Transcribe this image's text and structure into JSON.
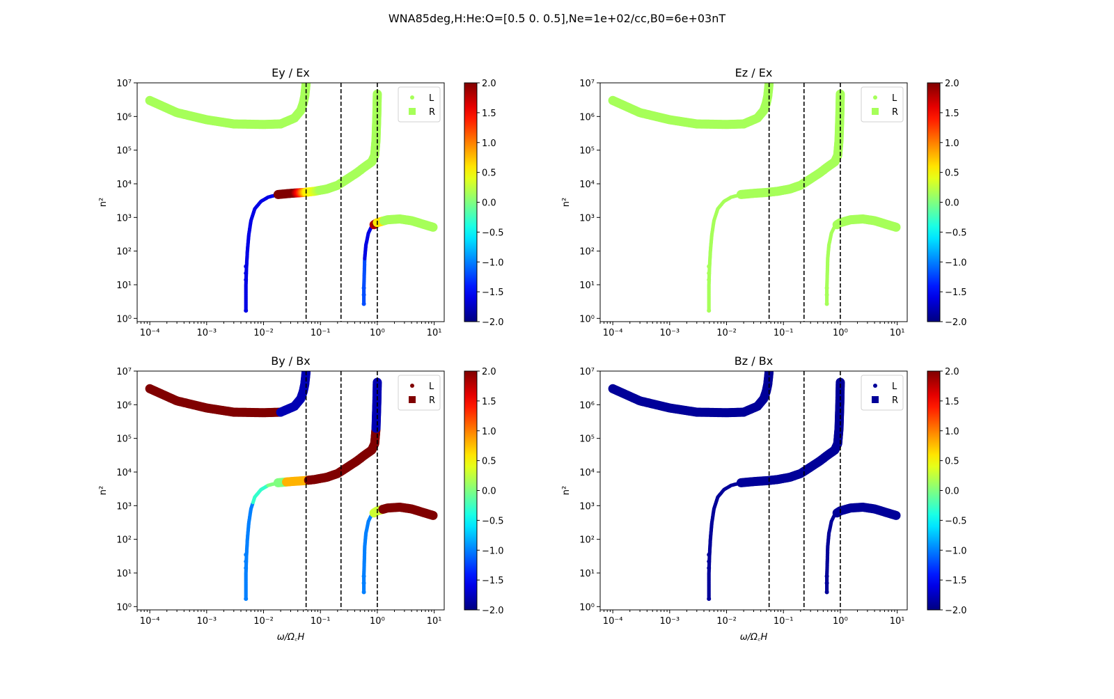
{
  "figure": {
    "suptitle": "WNA85deg,H:He:O=[0.5 0.  0.5],Ne=1e+02/cc,B0=6e+03nT"
  },
  "chart_data": [
    {
      "type": "scatter",
      "title": "Ey / Ex",
      "xlabel": "",
      "ylabel": "n²",
      "xscale": "log",
      "yscale": "log",
      "xlim": [
        6e-05,
        15
      ],
      "ylim": [
        0.8,
        10000000
      ],
      "xticks": [
        "10⁻⁴",
        "10⁻³",
        "10⁻²",
        "10⁻¹",
        "10⁰",
        "10¹"
      ],
      "yticks": [
        "10⁰",
        "10¹",
        "10²",
        "10³",
        "10⁴",
        "10⁵",
        "10⁶",
        "10⁷"
      ],
      "vlines": [
        0.056,
        0.23,
        1.0
      ],
      "legend": {
        "position": "top-right",
        "entries": [
          "L",
          "R"
        ]
      },
      "colorbar": {
        "min": -2.0,
        "max": 2.0,
        "ticks": [
          "2.0",
          "1.5",
          "1.0",
          "0.5",
          "0.0",
          "−0.5",
          "−1.0",
          "−1.5",
          "−2.0"
        ],
        "colormap": "jet"
      },
      "color_profile": "ey"
    },
    {
      "type": "scatter",
      "title": "Ez / Ex",
      "xlabel": "",
      "ylabel": "n²",
      "xscale": "log",
      "yscale": "log",
      "xlim": [
        6e-05,
        15
      ],
      "ylim": [
        0.8,
        10000000
      ],
      "xticks": [
        "10⁻⁴",
        "10⁻³",
        "10⁻²",
        "10⁻¹",
        "10⁰",
        "10¹"
      ],
      "yticks": [
        "10⁰",
        "10¹",
        "10²",
        "10³",
        "10⁴",
        "10⁵",
        "10⁶",
        "10⁷"
      ],
      "vlines": [
        0.056,
        0.23,
        1.0
      ],
      "legend": {
        "position": "top-right",
        "entries": [
          "L",
          "R"
        ]
      },
      "colorbar": {
        "min": -2.0,
        "max": 2.0,
        "ticks": [
          "2.0",
          "1.5",
          "1.0",
          "0.5",
          "0.0",
          "−0.5",
          "−1.0",
          "−1.5",
          "−2.0"
        ],
        "colormap": "jet"
      },
      "color_profile": "ez"
    },
    {
      "type": "scatter",
      "title": "By / Bx",
      "xlabel": "ω/Ω꜀H",
      "ylabel": "n²",
      "xscale": "log",
      "yscale": "log",
      "xlim": [
        6e-05,
        15
      ],
      "ylim": [
        0.8,
        10000000
      ],
      "xticks": [
        "10⁻⁴",
        "10⁻³",
        "10⁻²",
        "10⁻¹",
        "10⁰",
        "10¹"
      ],
      "yticks": [
        "10⁰",
        "10¹",
        "10²",
        "10³",
        "10⁴",
        "10⁵",
        "10⁶",
        "10⁷"
      ],
      "vlines": [
        0.056,
        0.23,
        1.0
      ],
      "legend": {
        "position": "top-right",
        "entries": [
          "L",
          "R"
        ]
      },
      "colorbar": {
        "min": -2.0,
        "max": 2.0,
        "ticks": [
          "2.0",
          "1.5",
          "1.0",
          "0.5",
          "0.0",
          "−0.5",
          "−1.0",
          "−1.5",
          "−2.0"
        ],
        "colormap": "jet"
      },
      "color_profile": "by"
    },
    {
      "type": "scatter",
      "title": "Bz / Bx",
      "xlabel": "ω/Ω꜀H",
      "ylabel": "n²",
      "xscale": "log",
      "yscale": "log",
      "xlim": [
        6e-05,
        15
      ],
      "ylim": [
        0.8,
        10000000
      ],
      "xticks": [
        "10⁻⁴",
        "10⁻³",
        "10⁻²",
        "10⁻¹",
        "10⁰",
        "10¹"
      ],
      "yticks": [
        "10⁰",
        "10¹",
        "10²",
        "10³",
        "10⁴",
        "10⁵",
        "10⁶",
        "10⁷"
      ],
      "vlines": [
        0.056,
        0.23,
        1.0
      ],
      "legend": {
        "position": "top-right",
        "entries": [
          "L",
          "R"
        ]
      },
      "colorbar": {
        "min": -2.0,
        "max": 2.0,
        "ticks": [
          "2.0",
          "1.5",
          "1.0",
          "0.5",
          "0.0",
          "−0.5",
          "−1.0",
          "−1.5",
          "−2.0"
        ],
        "colormap": "jet"
      },
      "color_profile": "bz"
    }
  ],
  "branches": [
    {
      "name": "upper-branch",
      "points": [
        [
          0.0001,
          3000000
        ],
        [
          0.0003,
          1300000
        ],
        [
          0.001,
          800000
        ],
        [
          0.003,
          600000
        ],
        [
          0.01,
          580000
        ],
        [
          0.02,
          600000
        ],
        [
          0.035,
          900000
        ],
        [
          0.045,
          1500000
        ],
        [
          0.05,
          2500000
        ],
        [
          0.053,
          4000000
        ],
        [
          0.055,
          7000000
        ],
        [
          0.056,
          10000000
        ]
      ]
    },
    {
      "name": "middle-branch",
      "points": [
        [
          0.0049,
          1.7
        ],
        [
          0.0049,
          4
        ],
        [
          0.0049,
          10
        ],
        [
          0.005,
          30
        ],
        [
          0.0052,
          100
        ],
        [
          0.0055,
          300
        ],
        [
          0.006,
          800
        ],
        [
          0.007,
          1800
        ],
        [
          0.009,
          3000
        ],
        [
          0.012,
          4000
        ],
        [
          0.018,
          4800
        ],
        [
          0.03,
          5200
        ],
        [
          0.05,
          5500
        ],
        [
          0.08,
          6000
        ],
        [
          0.13,
          7000
        ],
        [
          0.2,
          9000
        ],
        [
          0.3,
          14000
        ],
        [
          0.45,
          22000
        ],
        [
          0.6,
          32000
        ],
        [
          0.8,
          45000
        ],
        [
          0.9,
          70000
        ],
        [
          0.95,
          200000
        ],
        [
          0.98,
          1000000
        ],
        [
          1.0,
          5000000
        ]
      ]
    },
    {
      "name": "lower-branch",
      "points": [
        [
          0.58,
          2.7
        ],
        [
          0.58,
          8
        ],
        [
          0.59,
          20
        ],
        [
          0.6,
          60
        ],
        [
          0.63,
          150
        ],
        [
          0.7,
          350
        ],
        [
          0.8,
          550
        ],
        [
          1.0,
          700
        ],
        [
          1.5,
          850
        ],
        [
          2.5,
          900
        ],
        [
          4,
          800
        ],
        [
          7,
          600
        ],
        [
          10,
          500
        ]
      ]
    }
  ]
}
